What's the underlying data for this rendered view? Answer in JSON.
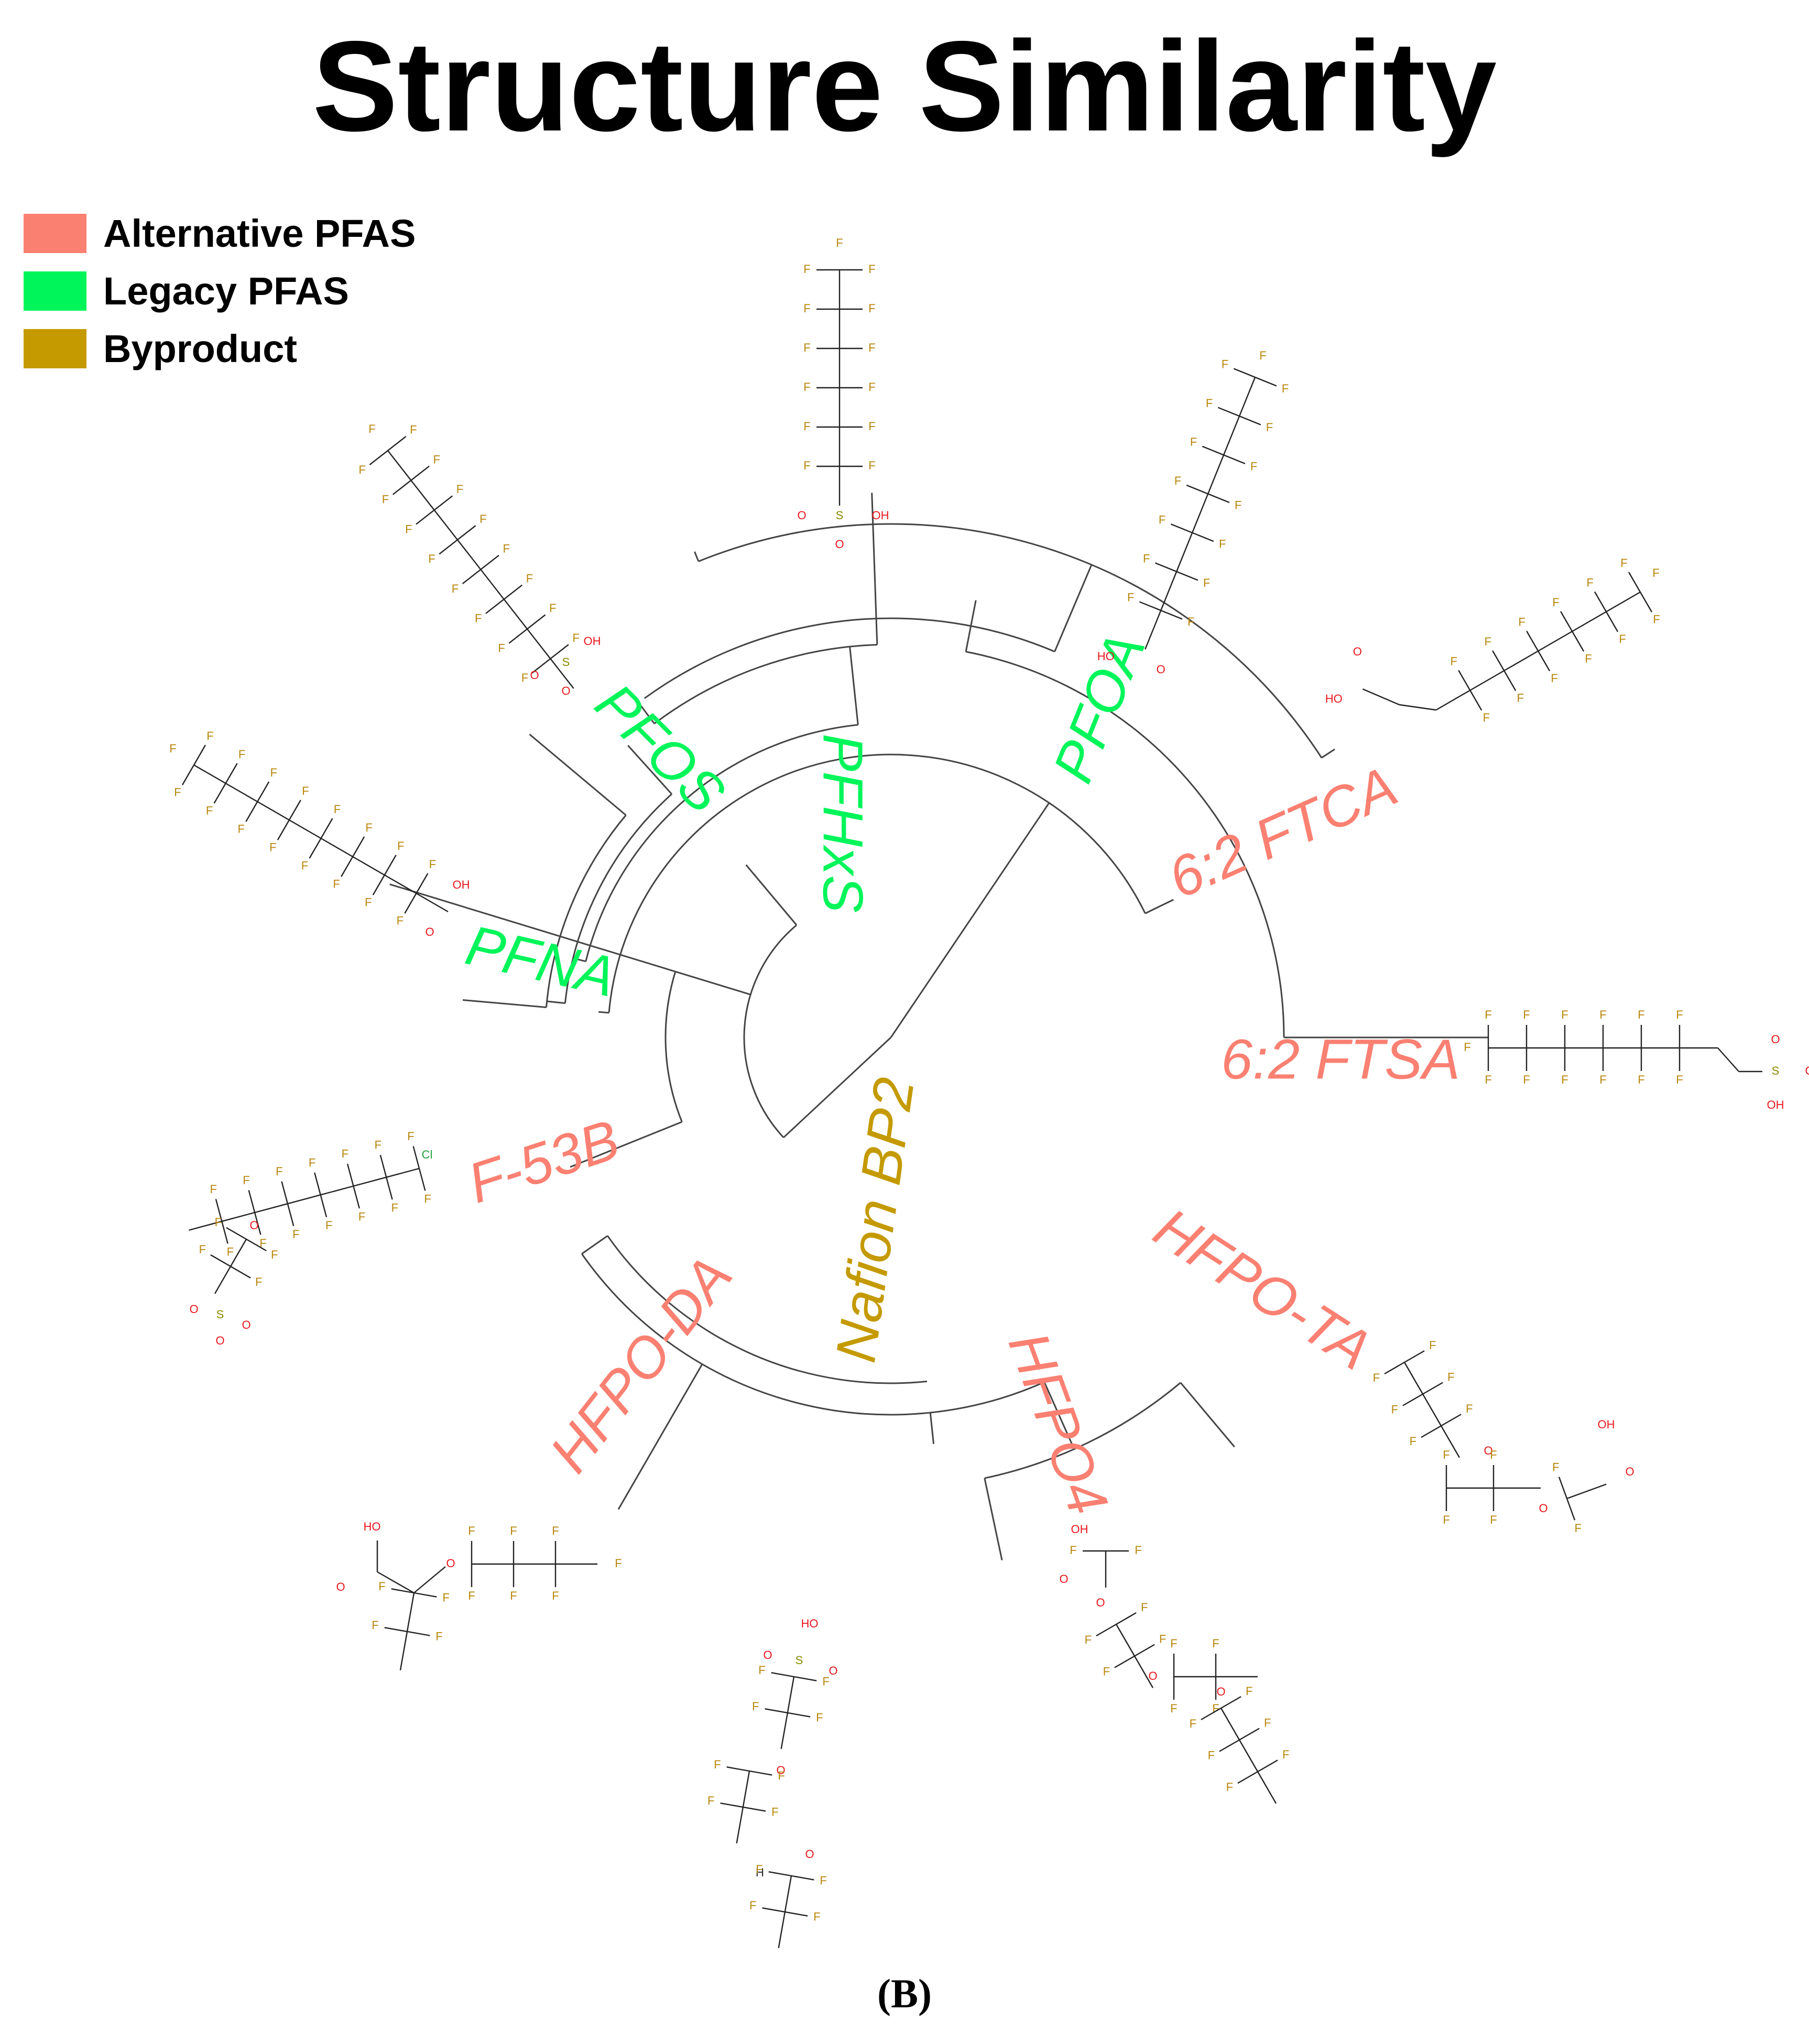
{
  "title": "Structure Similarity",
  "panel_label": "(B)",
  "colors": {
    "alternative": "#FA8072",
    "legacy": "#00F55A",
    "byproduct": "#C49A00",
    "branch": "#444444",
    "bond": "#222222",
    "fluorine": "#B8860B",
    "oxygen": "#E8161C",
    "sulfur": "#8A8A00",
    "chlorine": "#1FA03C"
  },
  "legend": [
    {
      "label": "Alternative PFAS",
      "category": "alternative"
    },
    {
      "label": "Legacy PFAS",
      "category": "legacy"
    },
    {
      "label": "Byproduct",
      "category": "byproduct"
    }
  ],
  "leaves": [
    {
      "label": "PFHxS",
      "category": "legacy"
    },
    {
      "label": "PFOA",
      "category": "legacy"
    },
    {
      "label": "6:2 FTCA",
      "category": "alternative"
    },
    {
      "label": "6:2 FTSA",
      "category": "alternative"
    },
    {
      "label": "HFPO-TA",
      "category": "alternative"
    },
    {
      "label": "HFPO4",
      "category": "alternative"
    },
    {
      "label": "Nafion BP2",
      "category": "byproduct"
    },
    {
      "label": "HFPO-DA",
      "category": "alternative"
    },
    {
      "label": "F-53B",
      "category": "alternative"
    },
    {
      "label": "PFNA",
      "category": "legacy"
    },
    {
      "label": "PFOS",
      "category": "legacy"
    }
  ],
  "atoms": {
    "F": "F",
    "O": "O",
    "OH": "OH",
    "HO": "HO",
    "S": "S",
    "Cl": "Cl",
    "H": "H"
  }
}
